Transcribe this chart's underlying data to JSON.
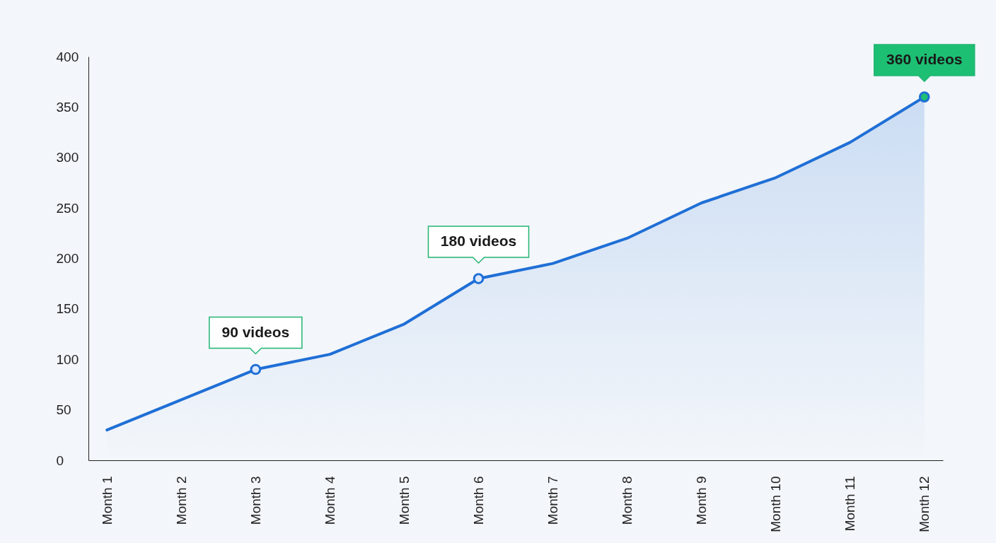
{
  "chart_data": {
    "type": "area",
    "categories": [
      "Month 1",
      "Month 2",
      "Month 3",
      "Month 4",
      "Month 5",
      "Month 6",
      "Month 7",
      "Month 8",
      "Month 9",
      "Month 10",
      "Month 11",
      "Month 12"
    ],
    "values": [
      30,
      60,
      90,
      105,
      135,
      180,
      195,
      220,
      255,
      280,
      315,
      360
    ],
    "color": "#1f6fd6",
    "ylim": [
      0,
      400
    ],
    "yticks": [
      0,
      50,
      100,
      150,
      200,
      250,
      300,
      350,
      400
    ],
    "grid": false,
    "annotations": [
      {
        "text": "90 videos",
        "x": "Month 3",
        "y": 90
      },
      {
        "text": "180 videos",
        "x": "Month 6",
        "y": 180
      },
      {
        "text": "360 videos",
        "x": "Month 12",
        "y": 360
      }
    ]
  }
}
